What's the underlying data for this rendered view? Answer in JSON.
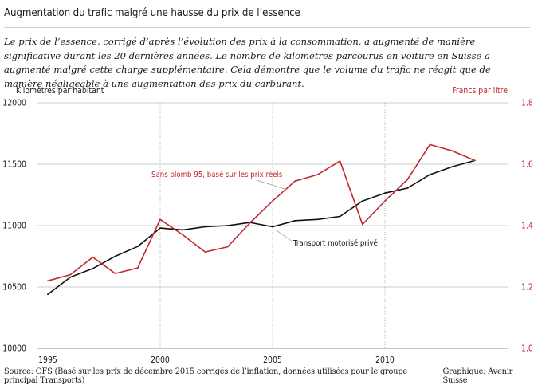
{
  "header": {
    "title": "Augmentation du trafic malgré une hausse du prix de l’essence",
    "intro": "Le prix de l’essence, corrigé d’après l’évolution des prix à la consommation, a augmenté de manière significative durant les 20 dernières années. Le nombre de kilomètres parcourus en voiture en Suisse a augmenté malgré cette charge supplémentaire. Cela démontre que le volume du trafic ne réagit que de manière négligeable à une augmentation des prix du carburant."
  },
  "footer": {
    "source": "Source: OFS (Basé sur les prix de décembre 2015 corrigés de l’inflation, données utilisées pour le groupe principal Transports)",
    "credit": "Graphique: Avenir Suisse"
  },
  "colors": {
    "traffic": "#111111",
    "price": "#c1272d",
    "grid": "#bdbdbd",
    "axis_right": "#c1272d"
  },
  "chart_data": {
    "type": "line",
    "ylabel_left": "Kilomètres par habitant",
    "ylabel_right": "Francs par litre",
    "x_ticks": [
      1995,
      2000,
      2005,
      2010
    ],
    "xlim": [
      1995,
      2015
    ],
    "ylim_left": [
      10000,
      12000
    ],
    "yticks_left": [
      10000,
      10500,
      11000,
      11500,
      12000
    ],
    "ylim_right": [
      1.0,
      1.8
    ],
    "yticks_right": [
      "1.0",
      "1.2",
      "1.4",
      "1.6",
      "1.8"
    ],
    "grid": true,
    "series": [
      {
        "name": "Transport motorisé privé",
        "axis": "left",
        "x": [
          1995,
          1996,
          1997,
          1998,
          1999,
          2000,
          2001,
          2002,
          2003,
          2004,
          2005,
          2006,
          2007,
          2008,
          2009,
          2010,
          2011,
          2012,
          2013,
          2014
        ],
        "values": [
          10440,
          10580,
          10650,
          10750,
          10830,
          10980,
          10965,
          10990,
          11000,
          11025,
          10990,
          11040,
          11050,
          11075,
          11200,
          11265,
          11305,
          11415,
          11480,
          11530
        ]
      },
      {
        "name": "Sans plomb 95, basé sur les prix réels",
        "axis": "right",
        "x": [
          1995,
          1996,
          1997,
          1998,
          1999,
          2000,
          2001,
          2002,
          2003,
          2004,
          2005,
          2006,
          2007,
          2008,
          2009,
          2010,
          2011,
          2012,
          2013,
          2014
        ],
        "values": [
          1.22,
          1.24,
          1.297,
          1.244,
          1.262,
          1.42,
          1.37,
          1.314,
          1.331,
          1.409,
          1.48,
          1.545,
          1.566,
          1.61,
          1.404,
          1.48,
          1.55,
          1.664,
          1.643,
          1.612
        ]
      }
    ]
  }
}
